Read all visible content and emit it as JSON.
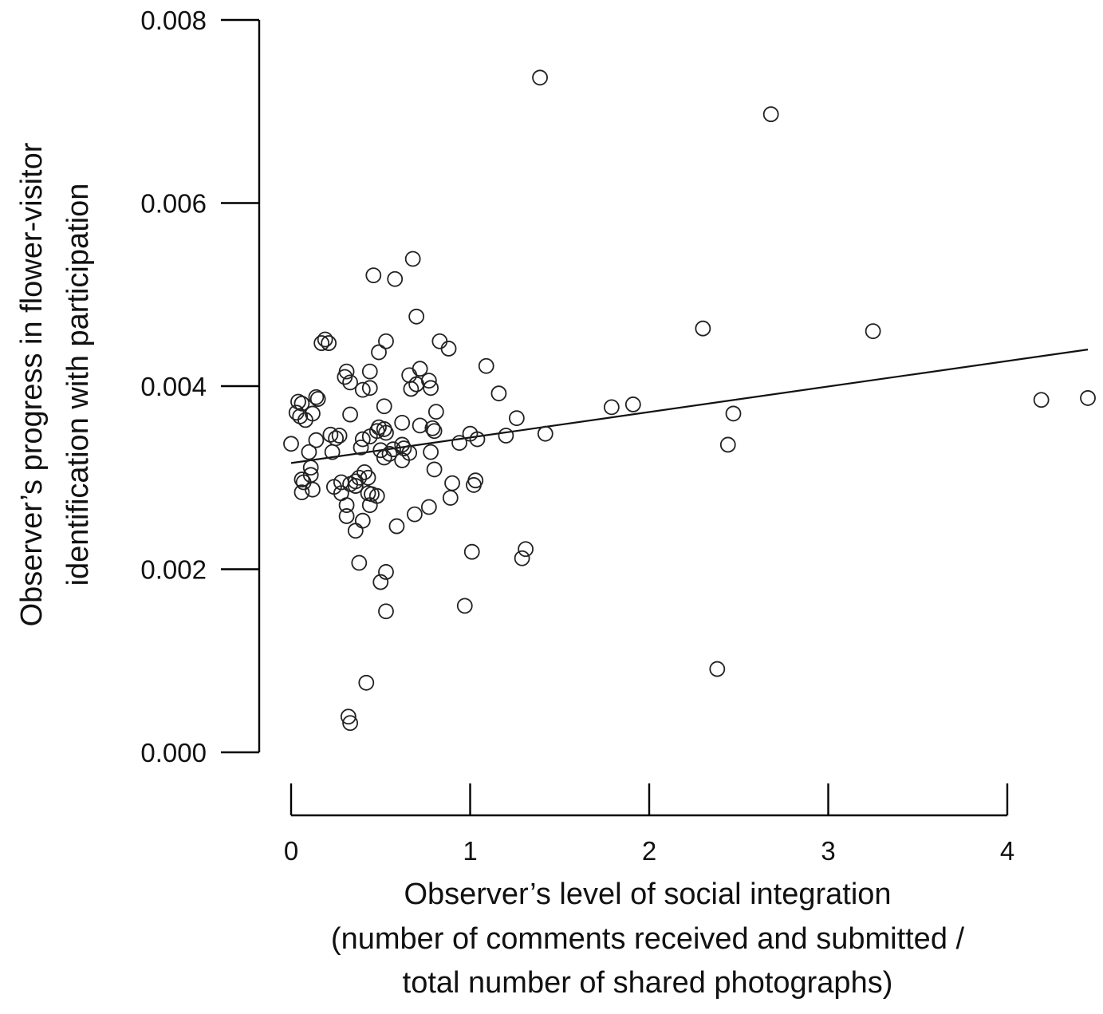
{
  "chart_data": {
    "type": "scatter",
    "title": "",
    "xlabel": [
      "Observer’s level of social integration",
      "(number of comments received and submitted /",
      "total number of shared photographs)"
    ],
    "ylabel": [
      "Observer’s progress in flower-visitor",
      "identification with participation"
    ],
    "xlim": [
      0,
      4.5
    ],
    "ylim": [
      0,
      0.008
    ],
    "xticks": [
      0,
      1,
      2,
      3,
      4
    ],
    "xtick_labels": [
      "0",
      "1",
      "2",
      "3",
      "4"
    ],
    "yticks": [
      0,
      0.002,
      0.004,
      0.006,
      0.008
    ],
    "ytick_labels": [
      "0.000",
      "0.002",
      "0.004",
      "0.006",
      "0.008"
    ],
    "grid": false,
    "legend": "none",
    "fit_line": {
      "x": [
        0,
        4.45
      ],
      "y": [
        0.00316,
        0.0044
      ]
    },
    "points": [
      [
        1.39,
        0.00737
      ],
      [
        2.68,
        0.00697
      ],
      [
        0.68,
        0.00539
      ],
      [
        0.46,
        0.00521
      ],
      [
        0.58,
        0.00517
      ],
      [
        0.7,
        0.00476
      ],
      [
        2.3,
        0.00463
      ],
      [
        3.25,
        0.0046
      ],
      [
        0.17,
        0.00447
      ],
      [
        0.19,
        0.00451
      ],
      [
        0.21,
        0.00447
      ],
      [
        0.53,
        0.00449
      ],
      [
        0.49,
        0.00437
      ],
      [
        0.83,
        0.00449
      ],
      [
        0.88,
        0.00441
      ],
      [
        1.09,
        0.00422
      ],
      [
        0.44,
        0.00416
      ],
      [
        0.31,
        0.00416
      ],
      [
        0.3,
        0.0041
      ],
      [
        0.33,
        0.00404
      ],
      [
        0.66,
        0.00412
      ],
      [
        0.72,
        0.00419
      ],
      [
        0.77,
        0.00406
      ],
      [
        0.7,
        0.00402
      ],
      [
        0.67,
        0.00397
      ],
      [
        0.78,
        0.00398
      ],
      [
        0.4,
        0.00396
      ],
      [
        0.44,
        0.00398
      ],
      [
        1.16,
        0.00392
      ],
      [
        0.04,
        0.00383
      ],
      [
        0.06,
        0.00381
      ],
      [
        0.14,
        0.00388
      ],
      [
        0.15,
        0.00386
      ],
      [
        1.79,
        0.00377
      ],
      [
        1.91,
        0.0038
      ],
      [
        4.19,
        0.00385
      ],
      [
        4.45,
        0.00387
      ],
      [
        0.52,
        0.00378
      ],
      [
        0.81,
        0.00372
      ],
      [
        0.03,
        0.00371
      ],
      [
        0.05,
        0.00367
      ],
      [
        0.08,
        0.00363
      ],
      [
        0.12,
        0.0037
      ],
      [
        0.33,
        0.00369
      ],
      [
        2.47,
        0.0037
      ],
      [
        1.26,
        0.00365
      ],
      [
        0.62,
        0.0036
      ],
      [
        0.72,
        0.00357
      ],
      [
        0.49,
        0.00355
      ],
      [
        0.52,
        0.00353
      ],
      [
        0.79,
        0.00354
      ],
      [
        0.8,
        0.00351
      ],
      [
        0.48,
        0.00351
      ],
      [
        0.53,
        0.00349
      ],
      [
        1.42,
        0.00348
      ],
      [
        1.0,
        0.00348
      ],
      [
        1.2,
        0.00346
      ],
      [
        0.22,
        0.00347
      ],
      [
        0.25,
        0.00343
      ],
      [
        0.27,
        0.00346
      ],
      [
        0.14,
        0.00341
      ],
      [
        0.4,
        0.00342
      ],
      [
        0.44,
        0.00345
      ],
      [
        0.0,
        0.00337
      ],
      [
        0.94,
        0.00338
      ],
      [
        1.04,
        0.00342
      ],
      [
        2.44,
        0.00336
      ],
      [
        0.62,
        0.00336
      ],
      [
        0.63,
        0.00332
      ],
      [
        0.66,
        0.00327
      ],
      [
        0.39,
        0.00333
      ],
      [
        0.1,
        0.00328
      ],
      [
        0.23,
        0.00328
      ],
      [
        0.5,
        0.0033
      ],
      [
        0.52,
        0.00322
      ],
      [
        0.55,
        0.00326
      ],
      [
        0.57,
        0.00331
      ],
      [
        0.78,
        0.00328
      ],
      [
        0.62,
        0.00319
      ],
      [
        0.11,
        0.00311
      ],
      [
        0.11,
        0.00303
      ],
      [
        0.06,
        0.00298
      ],
      [
        0.07,
        0.00295
      ],
      [
        0.41,
        0.00306
      ],
      [
        0.38,
        0.003
      ],
      [
        0.36,
        0.00296
      ],
      [
        0.43,
        0.003
      ],
      [
        0.8,
        0.00309
      ],
      [
        1.03,
        0.00297
      ],
      [
        1.02,
        0.00292
      ],
      [
        0.9,
        0.00294
      ],
      [
        0.24,
        0.0029
      ],
      [
        0.28,
        0.00295
      ],
      [
        0.33,
        0.00293
      ],
      [
        0.36,
        0.00291
      ],
      [
        0.28,
        0.00283
      ],
      [
        0.06,
        0.00284
      ],
      [
        0.12,
        0.00287
      ],
      [
        0.48,
        0.0028
      ],
      [
        0.45,
        0.00282
      ],
      [
        0.43,
        0.00283
      ],
      [
        0.89,
        0.00278
      ],
      [
        0.31,
        0.0027
      ],
      [
        0.44,
        0.0027
      ],
      [
        0.69,
        0.0026
      ],
      [
        0.77,
        0.00268
      ],
      [
        0.31,
        0.00258
      ],
      [
        0.4,
        0.00253
      ],
      [
        0.59,
        0.00247
      ],
      [
        0.36,
        0.00242
      ],
      [
        1.31,
        0.00222
      ],
      [
        1.01,
        0.00219
      ],
      [
        1.29,
        0.00212
      ],
      [
        0.38,
        0.00207
      ],
      [
        0.53,
        0.00197
      ],
      [
        0.5,
        0.00186
      ],
      [
        0.97,
        0.0016
      ],
      [
        0.53,
        0.00154
      ],
      [
        2.38,
        0.00091
      ],
      [
        0.42,
        0.00076
      ],
      [
        0.32,
        0.00039
      ],
      [
        0.33,
        0.00032
      ]
    ]
  }
}
